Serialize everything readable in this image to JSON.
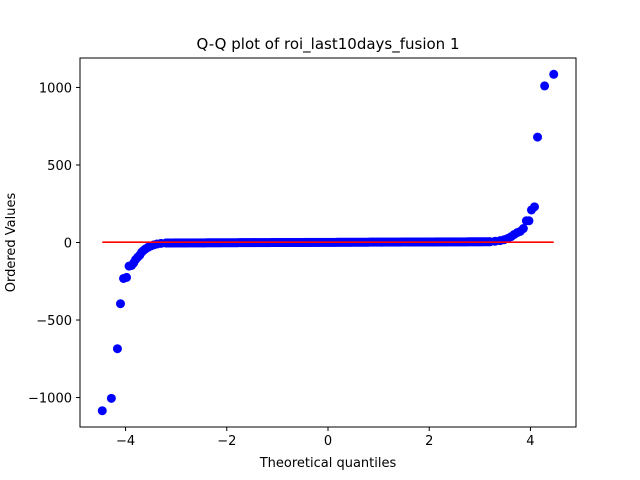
{
  "chart_data": {
    "type": "scatter",
    "title": "Q-Q plot of roi_last10days_fusion 1",
    "xlabel": "Theoretical quantiles",
    "ylabel": "Ordered Values",
    "xlim": [
      -4.9,
      4.9
    ],
    "ylim": [
      -1190,
      1190
    ],
    "xticks": [
      -4,
      -2,
      0,
      2,
      4
    ],
    "xtick_labels": [
      "−4",
      "−2",
      "0",
      "2",
      "4"
    ],
    "yticks": [
      -1000,
      -500,
      0,
      500,
      1000
    ],
    "ytick_labels": [
      "−1000",
      "−500",
      "0",
      "500",
      "1000"
    ],
    "grid": false,
    "legend": "none",
    "marker_color": "#0000ff",
    "line_color": "#ff0000",
    "fit_line": {
      "x": [
        -4.46,
        4.46
      ],
      "y": [
        2,
        2
      ]
    },
    "points": [
      [
        -4.46,
        -1085
      ],
      [
        -4.28,
        -1005
      ],
      [
        -4.16,
        -685
      ],
      [
        -4.1,
        -395
      ],
      [
        -4.04,
        -232
      ],
      [
        -3.98,
        -225
      ],
      [
        -3.93,
        -152
      ],
      [
        -3.88,
        -148
      ],
      [
        -3.84,
        -132
      ],
      [
        -3.8,
        -110
      ],
      [
        -3.76,
        -95
      ],
      [
        -3.72,
        -82
      ],
      [
        -3.68,
        -62
      ],
      [
        -3.64,
        -50
      ],
      [
        -3.6,
        -40
      ],
      [
        -3.55,
        -30
      ],
      [
        -3.5,
        -22
      ],
      [
        -3.44,
        -15
      ],
      [
        -3.38,
        -10
      ],
      [
        -3.3,
        -6
      ],
      [
        -3.2,
        -3
      ],
      [
        3.2,
        5
      ],
      [
        3.3,
        8
      ],
      [
        3.4,
        12
      ],
      [
        3.48,
        18
      ],
      [
        3.55,
        26
      ],
      [
        3.62,
        38
      ],
      [
        3.68,
        52
      ],
      [
        3.74,
        64
      ],
      [
        3.8,
        72
      ],
      [
        3.86,
        90
      ],
      [
        3.92,
        140
      ],
      [
        3.97,
        140
      ],
      [
        4.02,
        210
      ],
      [
        4.08,
        230
      ],
      [
        4.14,
        680
      ],
      [
        4.28,
        1010
      ],
      [
        4.46,
        1085
      ]
    ],
    "dense_band": {
      "x_from": -3.2,
      "x_to": 3.2,
      "y_from": -3,
      "y_to": 5
    }
  }
}
